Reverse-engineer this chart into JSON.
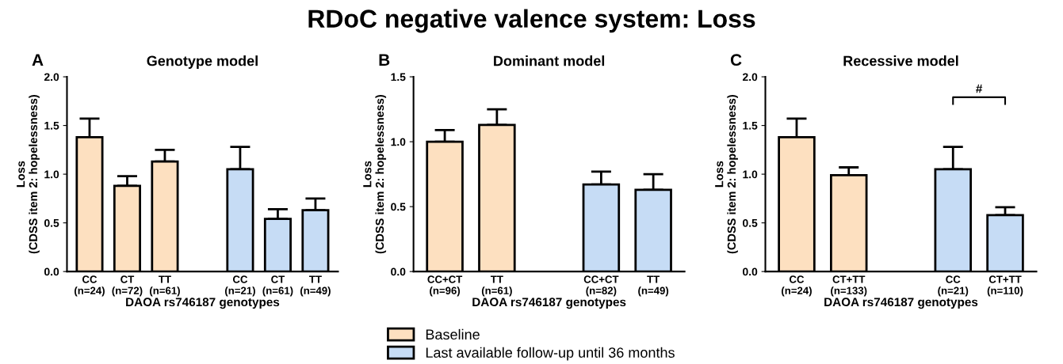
{
  "chart_data": [
    {
      "type": "bar",
      "title": "Genotype model",
      "xlabel": "DAOA rs746187 genotypes",
      "ylabel": "Loss\n(CDSS item 2: hopelessness)",
      "annotations": [
        "A",
        "RDoC negative valence system: Loss"
      ],
      "categories": [
        "CC\n(n=24)",
        "CT\n(n=72)",
        "TT\n(n=61)",
        null,
        "CC\n(n=21)",
        "CT\n(n=61)",
        "TT\n(n=49)"
      ],
      "series": [
        {
          "name": "Baseline",
          "color": "#fde0c0",
          "values": [
            1.38,
            0.88,
            1.13,
            null,
            null,
            null,
            null
          ],
          "errors": [
            [
              1.38,
              1.57
            ],
            [
              0.88,
              0.98
            ],
            [
              1.13,
              1.25
            ],
            null,
            null,
            null,
            null
          ]
        },
        {
          "name": "Last available follow-up until 36 months",
          "color": "#c6dcf5",
          "values": [
            null,
            null,
            null,
            null,
            1.05,
            0.54,
            0.63
          ],
          "errors": [
            null,
            null,
            null,
            null,
            [
              1.05,
              1.28
            ],
            [
              0.54,
              0.64
            ],
            [
              0.63,
              0.75
            ]
          ]
        }
      ],
      "ylim": [
        0,
        2
      ],
      "yticks": [
        {
          "value": 0,
          "label": "0.0"
        },
        {
          "value": 0.5,
          "label": "0.5"
        },
        {
          "value": 1,
          "label": "1.0"
        },
        {
          "value": 1.5,
          "label": "1.5"
        },
        {
          "value": 2,
          "label": "2.0"
        }
      ],
      "legend": "bottom"
    },
    {
      "type": "bar",
      "title": "Dominant model",
      "xlabel": "DAOA rs746187 genotypes",
      "ylabel": "Loss\n(CDSS item 2: hopelessness)",
      "annotations": [
        "B"
      ],
      "categories": [
        "CC+CT\n(n=96)",
        "TT\n(n=61)",
        null,
        "CC+CT\n(n=82)",
        "TT\n(n=49)"
      ],
      "series": [
        {
          "color": "#fde0c0",
          "values": [
            1.0,
            1.13,
            null,
            null,
            null
          ],
          "errors": [
            [
              1.0,
              1.09
            ],
            [
              1.13,
              1.25
            ],
            null,
            null,
            null
          ]
        },
        {
          "color": "#c6dcf5",
          "values": [
            null,
            null,
            null,
            0.67,
            0.63
          ],
          "errors": [
            null,
            null,
            null,
            [
              0.67,
              0.77
            ],
            [
              0.63,
              0.75
            ]
          ]
        }
      ],
      "ylim": [
        0,
        1.5
      ],
      "yticks": [
        {
          "value": 0,
          "label": "0.0"
        },
        {
          "value": 0.5,
          "label": "0.5"
        },
        {
          "value": 1,
          "label": "1.0"
        },
        {
          "value": 1.5,
          "label": "1.5"
        }
      ]
    },
    {
      "type": "bar",
      "title": "Recessive model",
      "xlabel": "DAOA rs746187 genotypes",
      "ylabel": "Loss\n(CDSS item 2: hopelessness)",
      "annotations": [
        "C",
        "#"
      ],
      "categories": [
        "CC\n(n=24)",
        "CT+TT\n(n=133)",
        null,
        "CC\n(n=21)",
        "CT+TT\n(n=110)"
      ],
      "series": [
        {
          "color": "#fde0c0",
          "values": [
            1.38,
            0.99,
            null,
            null,
            null
          ],
          "errors": [
            [
              1.38,
              1.57
            ],
            [
              0.99,
              1.07
            ],
            null,
            null,
            null
          ]
        },
        {
          "color": "#c6dcf5",
          "values": [
            null,
            null,
            null,
            1.05,
            0.58
          ],
          "errors": [
            null,
            null,
            null,
            [
              1.05,
              1.28
            ],
            [
              0.58,
              0.66
            ]
          ]
        }
      ],
      "ylim": [
        0,
        2
      ],
      "yticks": [
        {
          "value": 0,
          "label": "0.0"
        },
        {
          "value": 0.5,
          "label": "0.5"
        },
        {
          "value": 1,
          "label": "1.0"
        },
        {
          "value": 1.5,
          "label": "1.5"
        },
        {
          "value": 2,
          "label": "2.0"
        }
      ]
    }
  ]
}
